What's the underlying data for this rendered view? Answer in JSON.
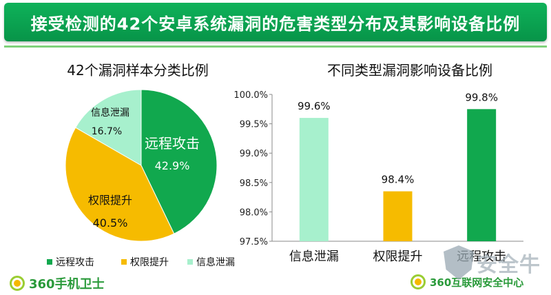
{
  "header": {
    "title": "接受检测的42个安卓系统漏洞的危害类型分布及其影响设备比例"
  },
  "colors": {
    "green": "#11a84e",
    "orange": "#f6bb00",
    "mint": "#a7f0cd",
    "header": "#0a9e4f"
  },
  "chart_data": [
    {
      "type": "pie",
      "title": "42个漏洞样本分类比例",
      "slices": [
        {
          "label": "远程攻击",
          "value": 42.9,
          "value_label": "42.9%",
          "color": "#11a84e"
        },
        {
          "label": "权限提升",
          "value": 40.5,
          "value_label": "40.5%",
          "color": "#f6bb00"
        },
        {
          "label": "信息泄漏",
          "value": 16.7,
          "value_label": "16.7%",
          "color": "#a7f0cd"
        }
      ],
      "legend": {
        "placement": "bottom",
        "items": [
          "远程攻击",
          "权限提升",
          "信息泄漏"
        ]
      }
    },
    {
      "type": "bar",
      "title": "不同类型漏洞影响设备比例",
      "categories": [
        "信息泄漏",
        "权限提升",
        "远程攻击"
      ],
      "values": [
        99.6,
        98.35,
        99.75
      ],
      "value_labels": [
        "99.6%",
        "98.4%",
        "99.8%"
      ],
      "colors": [
        "#a7f0cd",
        "#f6bb00",
        "#11a84e"
      ],
      "ylim": [
        97.5,
        100.0
      ],
      "yticks": [
        "97.5%",
        "98.0%",
        "98.5%",
        "99.0%",
        "99.5%",
        "100.0%"
      ],
      "grid": false
    }
  ],
  "footer": {
    "left_logo_text": "360手机卫士",
    "right_logo_text": "360互联网安全中心",
    "watermark_text": "安全牛"
  }
}
